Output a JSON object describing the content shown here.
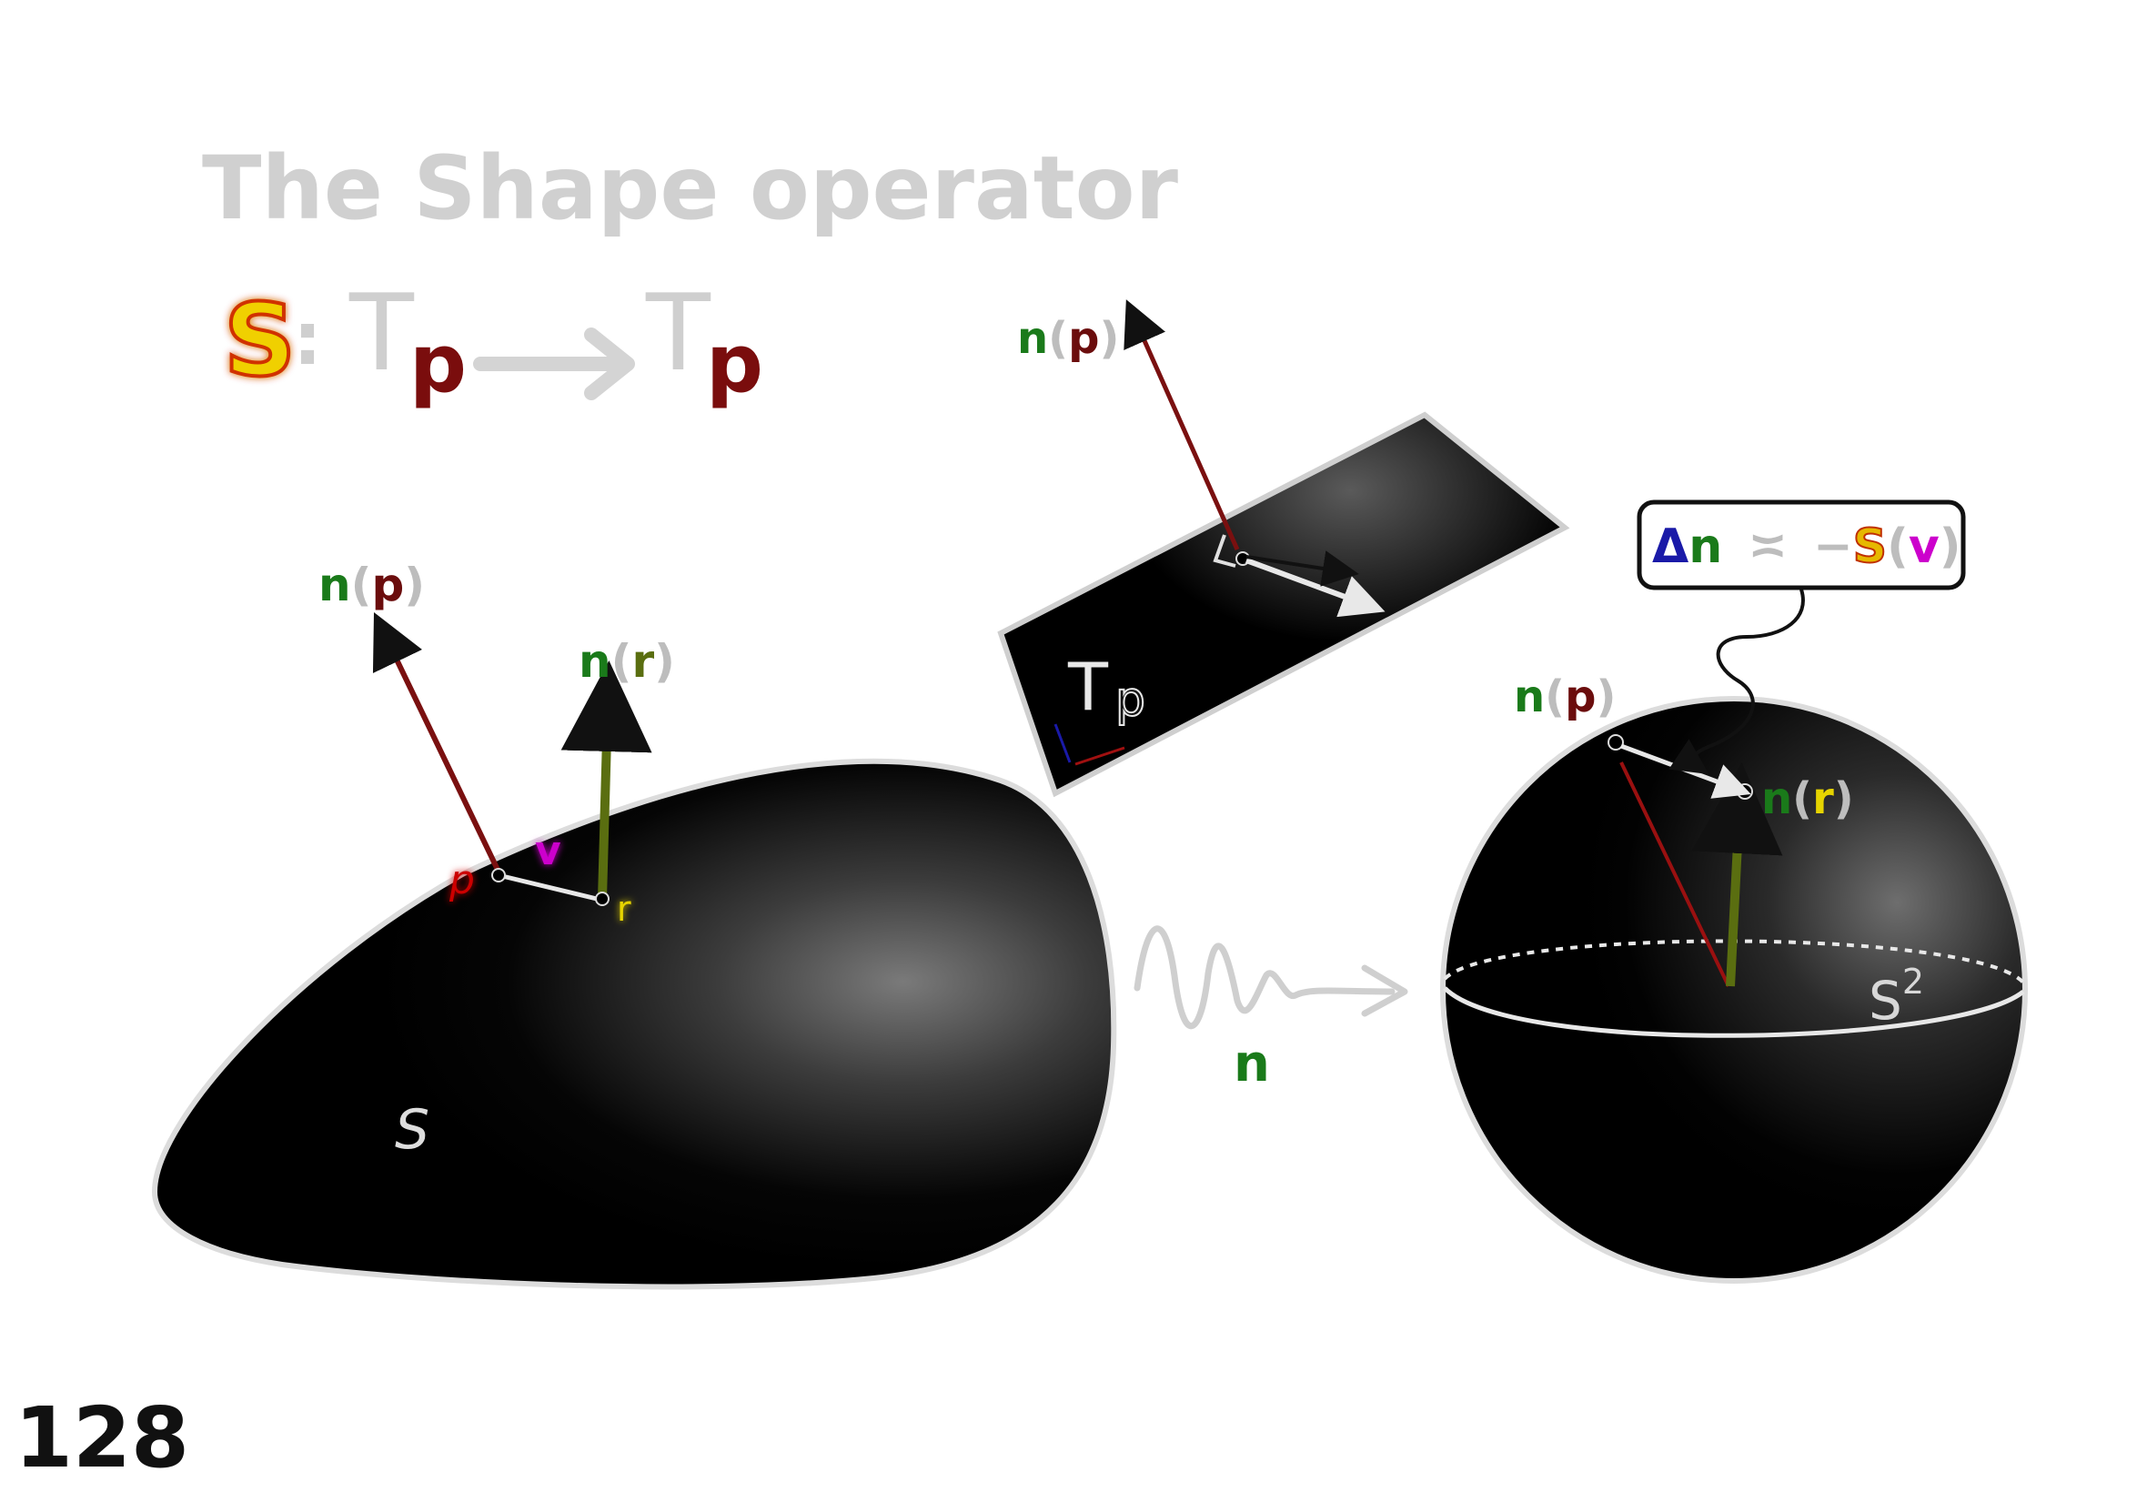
{
  "title": "The Shape operator",
  "formula": {
    "S": "S",
    "colon": ":",
    "T1": "T",
    "p1": "p",
    "T2": "T",
    "p2": "p"
  },
  "surface": {
    "label": "S",
    "normal_p": {
      "n": "n",
      "open": "(",
      "p": "p",
      "close": ")"
    },
    "normal_r": {
      "n": "n",
      "open": "(",
      "r": "r",
      "close": ")"
    },
    "point_p": "p",
    "point_r": "r",
    "vector_v": "v"
  },
  "tangent_plane": {
    "label_T": "T",
    "label_p": "p",
    "normal_p": {
      "n": "n",
      "open": "(",
      "p": "p",
      "close": ")"
    }
  },
  "gauss_map": {
    "label": "n"
  },
  "sphere": {
    "label": "S",
    "exponent": "2",
    "normal_p": {
      "n": "n",
      "open": "(",
      "p": "p",
      "close": ")"
    },
    "normal_r": {
      "n": "n",
      "open": "(",
      "r": "r",
      "close": ")"
    }
  },
  "callout": {
    "delta": "Δ",
    "n": "n",
    "approx": "≍",
    "minus": "−",
    "S": "S",
    "open": "(",
    "v": "v",
    "close": ")"
  },
  "page_number": "128",
  "colors": {
    "green": "#1a7a1a",
    "maroon": "#6b0d0d",
    "olive": "#5a6e10",
    "yellow": "#e6d400",
    "magenta": "#cc00cc",
    "red": "#cc0000",
    "blue": "#1a1aa8",
    "gray": "#cfcfcf"
  }
}
